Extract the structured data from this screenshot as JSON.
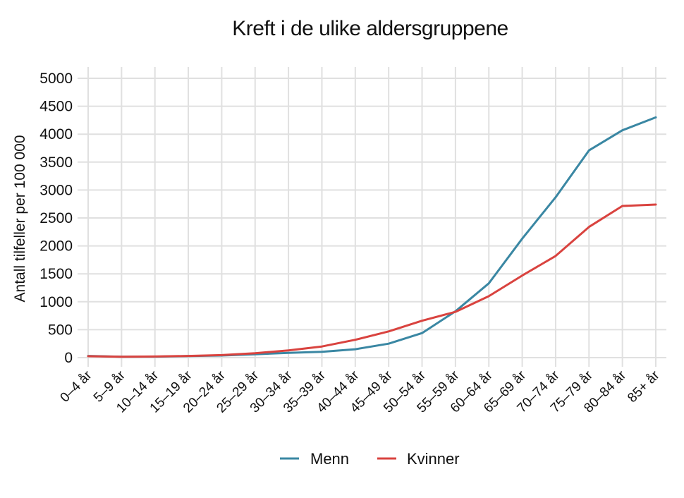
{
  "chart_data": {
    "type": "line",
    "title": "Kreft i de ulike aldersgruppene",
    "xlabel": "",
    "ylabel": "Antall tilfeller per 100 000",
    "ylim": [
      0,
      5000
    ],
    "yticks": [
      0,
      500,
      1000,
      1500,
      2000,
      2500,
      3000,
      3500,
      4000,
      4500,
      5000
    ],
    "grid": true,
    "legend_position": "bottom",
    "categories": [
      "0–4 år",
      "5–9 år",
      "10–14 år",
      "15–19 år",
      "20–24 år",
      "25–29 år",
      "30–34 år",
      "35–39 år",
      "40–44 år",
      "45–49 år",
      "50–54 år",
      "55–59 år",
      "60–64 år",
      "65–69 år",
      "70–74 år",
      "75–79 år",
      "80–84 år",
      "85+ år"
    ],
    "series": [
      {
        "name": "Menn",
        "color": "#3a87a3",
        "values": [
          30,
          15,
          18,
          28,
          38,
          60,
          85,
          105,
          150,
          250,
          440,
          830,
          1330,
          2130,
          2870,
          3710,
          4070,
          4300
        ]
      },
      {
        "name": "Kvinner",
        "color": "#d9433f",
        "values": [
          25,
          15,
          20,
          30,
          45,
          80,
          130,
          200,
          320,
          470,
          660,
          820,
          1100,
          1470,
          1820,
          2340,
          2715,
          2740
        ]
      }
    ]
  },
  "colors": {
    "grid": "#e0e0e0",
    "text": "#111111",
    "background": "#ffffff"
  }
}
